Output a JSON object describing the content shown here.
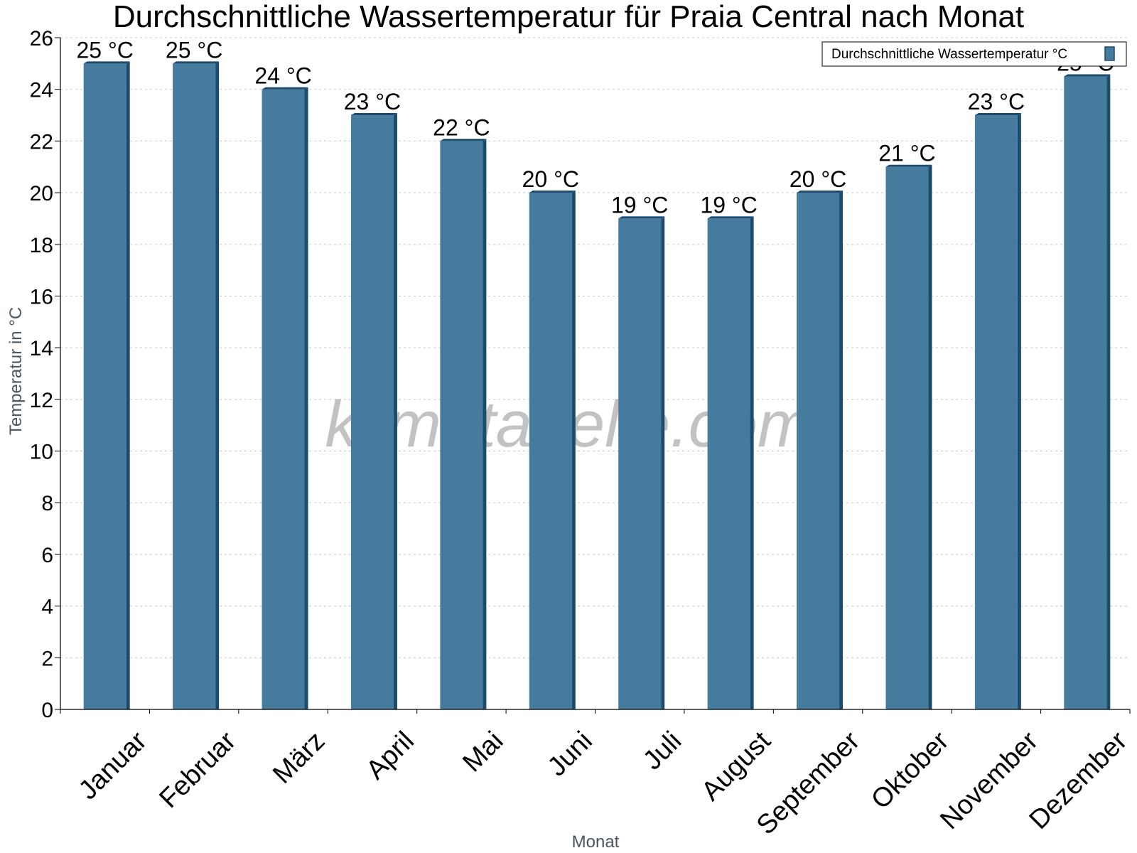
{
  "chart_data": {
    "type": "bar",
    "title": "Durchschnittliche Wassertemperatur für Praia Central nach Monat",
    "xlabel": "Monat",
    "ylabel": "Temperatur in °C",
    "categories": [
      "Januar",
      "Februar",
      "März",
      "April",
      "Mai",
      "Juni",
      "Juli",
      "August",
      "September",
      "Oktober",
      "November",
      "Dezember"
    ],
    "series": [
      {
        "name": "Durchschnittliche Wassertemperatur °C",
        "values": [
          25,
          25,
          24,
          23,
          22,
          20,
          19,
          19,
          20,
          21,
          23,
          24.5
        ],
        "labels": [
          "25 °C",
          "25 °C",
          "24 °C",
          "23 °C",
          "22 °C",
          "20 °C",
          "19 °C",
          "19 °C",
          "20 °C",
          "21 °C",
          "23 °C",
          "25 °C"
        ]
      }
    ],
    "ylim": [
      0,
      26
    ],
    "yticks": [
      0,
      2,
      4,
      6,
      8,
      10,
      12,
      14,
      16,
      18,
      20,
      22,
      24,
      26
    ],
    "grid": true,
    "legend_position": "top-right",
    "colors": {
      "bar_front": "#457b9d",
      "bar_side": "#1d4b6e",
      "bar_top": "#1d4b6e",
      "grid": "#c8c8c8"
    }
  },
  "watermark": "klimatabelle.com"
}
